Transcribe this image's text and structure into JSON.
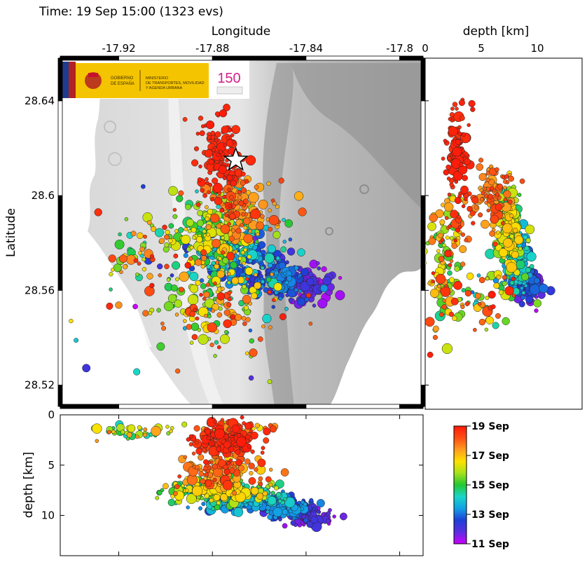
{
  "header": {
    "time_label": "Time: 19 Sep 15:00 (1323 evs)"
  },
  "chart_data": [
    {
      "type": "scatter",
      "panel": "map",
      "xlabel": "Longitude",
      "ylabel": "Latitude",
      "xlim": [
        -17.945,
        -17.79
      ],
      "ylim": [
        28.511,
        28.658
      ],
      "x_ticks": [
        "-17.92",
        "-17.88",
        "-17.84",
        "-17.8"
      ],
      "x_tick_values": [
        -17.92,
        -17.88,
        -17.84,
        -17.8
      ],
      "y_ticks": [
        "28.64",
        "28.6",
        "28.56",
        "28.52"
      ],
      "y_tick_values": [
        28.64,
        28.6,
        28.56,
        28.52
      ],
      "marker": {
        "type": "star",
        "lon": -17.87,
        "lat": 28.615
      },
      "clusters": [
        {
          "lon": -17.877,
          "lat": 28.615,
          "slon": 0.005,
          "slat": 0.009,
          "n": 130,
          "date": [
            18.6,
            19
          ]
        },
        {
          "lon": -17.868,
          "lat": 28.594,
          "slon": 0.008,
          "slat": 0.006,
          "n": 120,
          "date": [
            17,
            18.6
          ]
        },
        {
          "lon": -17.878,
          "lat": 28.584,
          "slon": 0.009,
          "slat": 0.008,
          "n": 200,
          "date": [
            14,
            17
          ]
        },
        {
          "lon": -17.87,
          "lat": 28.574,
          "slon": 0.009,
          "slat": 0.006,
          "n": 160,
          "date": [
            12.5,
            14.5
          ]
        },
        {
          "lon": -17.852,
          "lat": 28.566,
          "slon": 0.007,
          "slat": 0.005,
          "n": 150,
          "date": [
            11.8,
            13.5
          ]
        },
        {
          "lon": -17.838,
          "lat": 28.563,
          "slon": 0.006,
          "slat": 0.004,
          "n": 90,
          "date": [
            11,
            12.2
          ]
        },
        {
          "lon": -17.878,
          "lat": 28.555,
          "slon": 0.012,
          "slat": 0.01,
          "n": 150,
          "date": [
            14.5,
            19
          ]
        },
        {
          "lon": -17.91,
          "lat": 28.575,
          "slon": 0.01,
          "slat": 0.008,
          "n": 60,
          "date": [
            14,
            19
          ]
        },
        {
          "lon": -17.89,
          "lat": 28.56,
          "slon": 0.025,
          "slat": 0.025,
          "n": 60,
          "date": [
            11,
            19
          ]
        }
      ]
    },
    {
      "type": "scatter",
      "panel": "depth-vs-latitude",
      "xlabel": "depth [km]",
      "xlim": [
        0,
        14
      ],
      "ylim": [
        28.511,
        28.658
      ],
      "x_ticks": [
        "0",
        "5",
        "10"
      ],
      "x_tick_values": [
        0,
        5,
        10
      ],
      "clusters": [
        {
          "d": 3,
          "lat": 28.618,
          "sd": 0.5,
          "slat": 0.01,
          "n": 120,
          "date": [
            18.6,
            19
          ]
        },
        {
          "d": 6,
          "lat": 28.6,
          "sd": 0.8,
          "slat": 0.006,
          "n": 100,
          "date": [
            17,
            18.6
          ]
        },
        {
          "d": 7.5,
          "lat": 28.586,
          "sd": 0.6,
          "slat": 0.008,
          "n": 180,
          "date": [
            14,
            17
          ]
        },
        {
          "d": 8.4,
          "lat": 28.572,
          "sd": 0.5,
          "slat": 0.006,
          "n": 150,
          "date": [
            12.5,
            14.5
          ]
        },
        {
          "d": 9.3,
          "lat": 28.562,
          "sd": 0.5,
          "slat": 0.004,
          "n": 130,
          "date": [
            11,
            13
          ]
        },
        {
          "d": 1.5,
          "lat": 28.565,
          "sd": 0.6,
          "slat": 0.012,
          "n": 80,
          "date": [
            14.5,
            19
          ]
        },
        {
          "d": 5.5,
          "lat": 28.558,
          "sd": 1.6,
          "slat": 0.008,
          "n": 70,
          "date": [
            13,
            19
          ]
        },
        {
          "d": 2.5,
          "lat": 28.585,
          "sd": 0.8,
          "slat": 0.006,
          "n": 50,
          "date": [
            15,
            19
          ]
        }
      ]
    },
    {
      "type": "scatter",
      "panel": "longitude-vs-depth",
      "ylabel": "depth [km]",
      "xlim": [
        -17.945,
        -17.79
      ],
      "ylim": [
        0,
        14
      ],
      "y_ticks": [
        "0",
        "5",
        "10"
      ],
      "y_tick_values": [
        0,
        5,
        10
      ],
      "clusters": [
        {
          "lon": -17.875,
          "d": 2.5,
          "slon": 0.007,
          "sd": 0.8,
          "n": 150,
          "date": [
            18.4,
            19
          ]
        },
        {
          "lon": -17.876,
          "d": 5.5,
          "slon": 0.009,
          "sd": 0.9,
          "n": 120,
          "date": [
            16.8,
            18.6
          ]
        },
        {
          "lon": -17.878,
          "d": 7.5,
          "slon": 0.011,
          "sd": 0.6,
          "n": 200,
          "date": [
            14,
            17
          ]
        },
        {
          "lon": -17.865,
          "d": 8.5,
          "slon": 0.01,
          "sd": 0.5,
          "n": 160,
          "date": [
            12.5,
            14.5
          ]
        },
        {
          "lon": -17.848,
          "d": 9.2,
          "slon": 0.006,
          "sd": 0.5,
          "n": 150,
          "date": [
            11.8,
            13.5
          ]
        },
        {
          "lon": -17.838,
          "d": 10.2,
          "slon": 0.005,
          "sd": 0.5,
          "n": 90,
          "date": [
            11,
            12.2
          ]
        },
        {
          "lon": -17.915,
          "d": 1.7,
          "slon": 0.008,
          "sd": 0.3,
          "n": 40,
          "date": [
            14,
            18
          ]
        },
        {
          "lon": -17.87,
          "d": 1.2,
          "slon": 0.01,
          "sd": 0.4,
          "n": 40,
          "date": [
            16,
            19
          ]
        }
      ]
    },
    {
      "type": "colorbar",
      "panel": "colorbar",
      "labels": [
        "19 Sep",
        "17 Sep",
        "15 Sep",
        "13 Sep",
        "11 Sep"
      ],
      "values": [
        19,
        17,
        15,
        13,
        11
      ],
      "range": [
        11,
        19
      ],
      "colors": [
        "#cc00ff",
        "#5a2de0",
        "#1d3fd6",
        "#12a0e6",
        "#19d6c8",
        "#23c833",
        "#a6e21a",
        "#ffe100",
        "#ff9b1f",
        "#ff4d12",
        "#ff1b0a"
      ]
    }
  ],
  "colors": {
    "frame": "#000000",
    "terrain_light": "#e8e8e8",
    "terrain_dark": "#7a7a7a",
    "sea": "#ffffff"
  },
  "logo": {
    "left_text": [
      "GOBIERNO",
      "DE ESPAÑA"
    ],
    "right_text": [
      "MINISTERIO",
      "DE TRANSPORTES, MOVILIDAD",
      "Y AGENDA URBANA"
    ],
    "anniversary_text": "150"
  }
}
